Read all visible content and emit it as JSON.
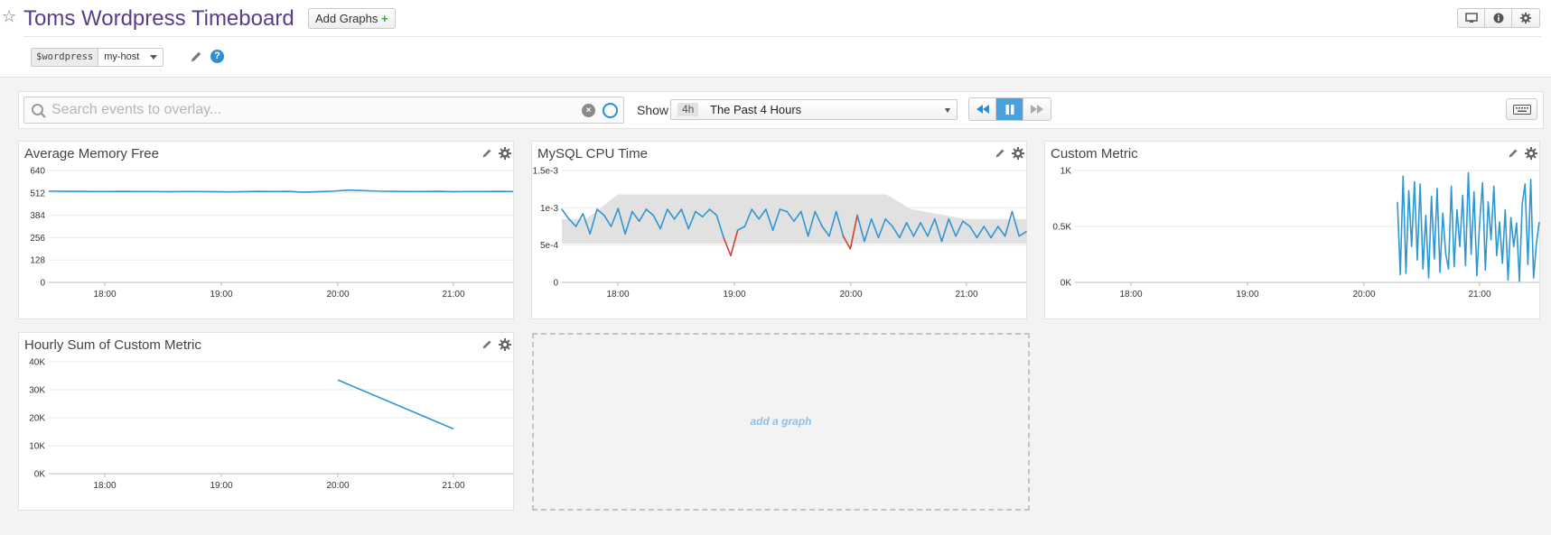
{
  "header": {
    "title": "Toms Wordpress Timeboard",
    "add_graphs_label": "Add Graphs",
    "add_graphs_plus": "+",
    "icons": [
      "star-icon",
      "monitor-icon",
      "info-icon",
      "gear-icon"
    ]
  },
  "template_var": {
    "name": "$wordpress",
    "value": "my-host"
  },
  "toolbar": {
    "search_placeholder": "Search events to overlay...",
    "show_label": "Show",
    "timeframe_badge": "4h",
    "timeframe_label": "The Past 4 Hours"
  },
  "colors": {
    "title": "#5a3d8a",
    "line": "#2f97d2",
    "anomaly": "#d3402e",
    "band": "#e1e1e1",
    "accent": "#48a3dd"
  },
  "widgets": [
    {
      "title": "Average Memory Free",
      "chart_data": {
        "type": "line",
        "x_ticks": [
          "18:00",
          "19:00",
          "20:00",
          "21:00"
        ],
        "y_ticks": [
          "640",
          "512",
          "384",
          "256",
          "128",
          "0"
        ],
        "ylim": [
          0,
          640
        ],
        "series": [
          {
            "values": [
              522,
              521,
              521,
              520,
              520,
              521,
              520,
              520,
              519,
              520,
              520,
              519,
              518,
              519,
              521,
              520,
              521,
              516,
              519,
              522,
              528,
              525,
              522,
              521,
              520,
              520,
              521,
              519,
              520,
              520,
              521,
              520
            ]
          }
        ]
      }
    },
    {
      "title": "MySQL CPU Time",
      "chart_data": {
        "type": "line",
        "x_ticks": [
          "18:00",
          "19:00",
          "20:00",
          "21:00"
        ],
        "y_ticks": [
          "1.5e-3",
          "1e-3",
          "5e-4",
          "0"
        ],
        "ylim": [
          0,
          0.0015
        ],
        "series": [
          {
            "values": [
              0.00098,
              0.00085,
              0.00075,
              0.00092,
              0.00065,
              0.00098,
              0.0009,
              0.00075,
              0.00099,
              0.00065,
              0.00095,
              0.00082,
              0.00098,
              0.0009,
              0.00072,
              0.00098,
              0.00085,
              0.00098,
              0.00072,
              0.00095,
              0.00088,
              0.00098,
              0.0009,
              0.0006,
              0.00036,
              0.0007,
              0.00075,
              0.00098,
              0.00085,
              0.00098,
              0.0007,
              0.00098,
              0.00095,
              0.00082,
              0.00095,
              0.00062,
              0.00095,
              0.00075,
              0.00062,
              0.00095,
              0.00062,
              0.00045,
              0.0009,
              0.00055,
              0.00085,
              0.0006,
              0.00085,
              0.00075,
              0.0006,
              0.0008,
              0.00062,
              0.0008,
              0.00062,
              0.00085,
              0.00055,
              0.00085,
              0.00062,
              0.00082,
              0.00075,
              0.0006,
              0.00075,
              0.0006,
              0.00075,
              0.00062,
              0.00095,
              0.00062,
              0.00068
            ]
          }
        ]
      }
    },
    {
      "title": "Custom Metric",
      "chart_data": {
        "type": "line",
        "x_ticks": [
          "18:00",
          "19:00",
          "20:00",
          "21:00"
        ],
        "y_ticks": [
          "1K",
          "0.5K",
          "0K"
        ],
        "ylim": [
          0,
          1000
        ],
        "series": [
          {
            "values": [
              720,
              70,
              950,
              80,
              820,
              320,
              900,
              200,
              880,
              120,
              600,
              40,
              770,
              210,
              840,
              90,
              620,
              260,
              120,
              860,
              140,
              650,
              320,
              780,
              150,
              980,
              250,
              810,
              60,
              540,
              890,
              110,
              720,
              380,
              860,
              240,
              540,
              170,
              650,
              20,
              580,
              320,
              530,
              10,
              700,
              880,
              160,
              920,
              40,
              350,
              540
            ]
          }
        ]
      }
    },
    {
      "title": "Hourly Sum of Custom Metric",
      "chart_data": {
        "type": "line",
        "x_ticks": [
          "18:00",
          "19:00",
          "20:00",
          "21:00"
        ],
        "y_ticks": [
          "40K",
          "30K",
          "20K",
          "10K",
          "0K"
        ],
        "ylim": [
          0,
          40000
        ],
        "series": [
          {
            "values": [
              33500,
              16000
            ]
          }
        ]
      }
    }
  ],
  "add_graph_label": "add a graph"
}
